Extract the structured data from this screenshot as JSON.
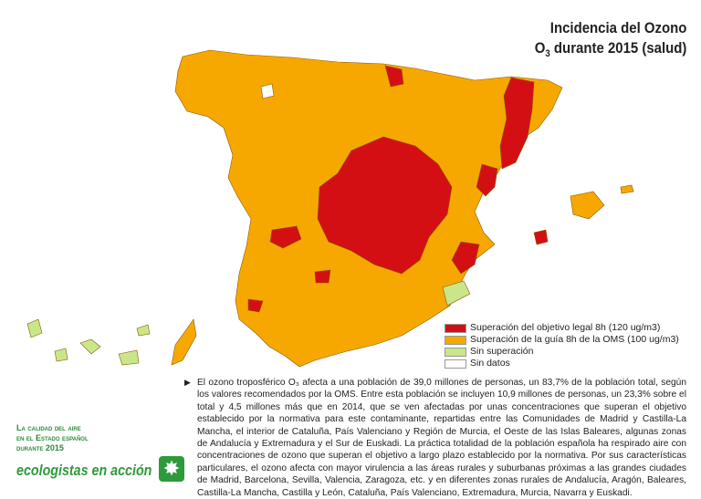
{
  "title": {
    "line1": "Incidencia del Ozono",
    "line2_prefix": "O",
    "line2_sub": "3",
    "line2_rest": " durante 2015 (salud)"
  },
  "legend": {
    "items": [
      {
        "label": "Superación del objetivo legal 8h (120 ug/m3)",
        "color": "#d40f14"
      },
      {
        "label": "Superación de la guía 8h de la OMS (100 ug/m3)",
        "color": "#f6a800"
      },
      {
        "label": "Sin superación",
        "color": "#c9e68a"
      },
      {
        "label": "Sin datos",
        "color": "#ffffff"
      }
    ]
  },
  "body_text": "El ozono troposférico O₃ afecta a una población de 39,0 millones de personas, un 83,7% de la población total, según los valores recomendados por la OMS. Entre esta población se incluyen 10,9 millones de personas, un 23,3% sobre el total y 4,5 millones más que en 2014, que se ven afectadas por unas concentraciones que superan el objetivo establecido por la normativa para este contaminante, repartidas entre las Comunidades de Madrid y Castilla-La Mancha, el interior de Cataluña, País Valenciano y Región de Murcia, el Oeste de las Islas Baleares, algunas zonas de Andalucía y Extremadura y el Sur de Euskadi. La práctica totalidad de la población española ha respirado aire con concentraciones de ozono que superan el objetivo a largo plazo establecido por la normativa. Por sus características particulares, el ozono afecta con mayor virulencia a las áreas rurales y suburbanas próximas a las grandes ciudades de Madrid, Barcelona, Sevilla, Valencia, Zaragoza, etc. y en diferentes zonas rurales de Andalucía, Aragón, Baleares, Castilla-La Mancha, Castilla y León, Cataluña, País Valenciano, Extremadura, Murcia, Navarra y Euskadi.",
  "report": {
    "line1": "La calidad del aire",
    "line2": "en el Estado español",
    "line3": "durante 2015"
  },
  "brand": {
    "name": "ecologistas en acción",
    "logo_icon": "sun-flower-logo"
  }
}
